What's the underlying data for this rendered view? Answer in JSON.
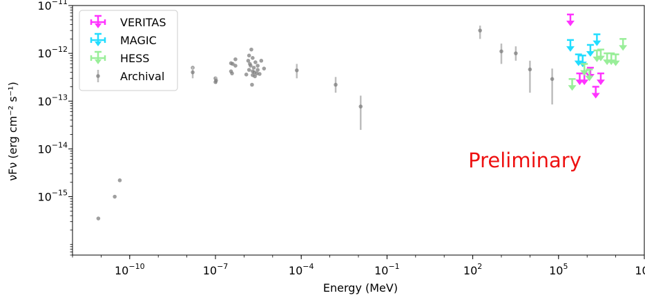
{
  "chart_data": {
    "type": "scatter",
    "xlabel": "Energy (MeV)",
    "ylabel": "νFν (erg cm⁻² s⁻¹)",
    "x_scale": "log",
    "y_scale": "log",
    "xlim": [
      1e-12,
      100000000.0
    ],
    "ylim": [
      6e-17,
      1e-11
    ],
    "x_ticks": [
      {
        "value": 1e-10,
        "base": "10",
        "exp": "−10"
      },
      {
        "value": 1e-07,
        "base": "10",
        "exp": "−7"
      },
      {
        "value": 0.0001,
        "base": "10",
        "exp": "−4"
      },
      {
        "value": 0.1,
        "base": "10",
        "exp": "−1"
      },
      {
        "value": 100,
        "base": "10",
        "exp": "2"
      },
      {
        "value": 100000.0,
        "base": "10",
        "exp": "5"
      },
      {
        "value": 100000000.0,
        "base": "10",
        "exp": "8"
      }
    ],
    "y_ticks": [
      {
        "value": 1e-15,
        "base": "10",
        "exp": "−15"
      },
      {
        "value": 1e-14,
        "base": "10",
        "exp": "−14"
      },
      {
        "value": 1e-13,
        "base": "10",
        "exp": "−13"
      },
      {
        "value": 1e-12,
        "base": "10",
        "exp": "−12"
      },
      {
        "value": 1e-11,
        "base": "10",
        "exp": "−11"
      }
    ],
    "legend": {
      "position": "top-left",
      "entries": [
        "VERITAS",
        "MAGIC",
        "HESS",
        "Archival"
      ]
    },
    "annotation": {
      "text": "Preliminary",
      "color": "#ee1111"
    },
    "series": [
      {
        "name": "Archival",
        "color": "#7f7f7f",
        "points": [
          {
            "x": 8e-12,
            "y": 3.5e-16
          },
          {
            "x": 3e-11,
            "y": 1e-15
          },
          {
            "x": 4.5e-11,
            "y": 2.2e-15
          },
          {
            "x": 1.6e-08,
            "y": 5e-13
          },
          {
            "x": 1.6e-08,
            "y": 4e-13,
            "yerr": [
              3e-13,
              5.2e-13
            ]
          },
          {
            "x": 1e-07,
            "y": 3e-13
          },
          {
            "x": 1.05e-07,
            "y": 2.7e-13,
            "yerr": [
              2.3e-13,
              3.2e-13
            ]
          },
          {
            "x": 1e-07,
            "y": 2.5e-13
          },
          {
            "x": 3.5e-07,
            "y": 6.2e-13
          },
          {
            "x": 4e-07,
            "y": 6e-13
          },
          {
            "x": 3.5e-07,
            "y": 4.2e-13
          },
          {
            "x": 3.8e-07,
            "y": 3.8e-13
          },
          {
            "x": 5e-07,
            "y": 7.5e-13
          },
          {
            "x": 5e-07,
            "y": 5.5e-13
          },
          {
            "x": 1.5e-06,
            "y": 9e-13
          },
          {
            "x": 1.8e-06,
            "y": 1.2e-12
          },
          {
            "x": 2e-06,
            "y": 8e-13
          },
          {
            "x": 1.4e-06,
            "y": 7e-13
          },
          {
            "x": 1.6e-06,
            "y": 6e-13
          },
          {
            "x": 1.7e-06,
            "y": 5.5e-13
          },
          {
            "x": 2.2e-06,
            "y": 5e-13
          },
          {
            "x": 2.5e-06,
            "y": 6.5e-13
          },
          {
            "x": 1.5e-06,
            "y": 4.5e-13
          },
          {
            "x": 2e-06,
            "y": 4.2e-13
          },
          {
            "x": 2.3e-06,
            "y": 4e-13
          },
          {
            "x": 2.8e-06,
            "y": 3.8e-13
          },
          {
            "x": 2e-06,
            "y": 3.5e-13
          },
          {
            "x": 2.4e-06,
            "y": 3.3e-13
          },
          {
            "x": 3e-06,
            "y": 4.5e-13
          },
          {
            "x": 3.5e-06,
            "y": 3.7e-13
          },
          {
            "x": 1.9e-06,
            "y": 2.2e-13
          },
          {
            "x": 3e-06,
            "y": 5.5e-13
          },
          {
            "x": 4e-06,
            "y": 7e-13
          },
          {
            "x": 5e-06,
            "y": 4.8e-13
          },
          {
            "x": 1.2e-06,
            "y": 3.6e-13
          },
          {
            "x": 7e-05,
            "y": 4.4e-13,
            "yerr": [
              3e-13,
              6e-13
            ]
          },
          {
            "x": 0.0016,
            "y": 2.2e-13,
            "yerr": [
              1.5e-13,
              3.2e-13
            ]
          },
          {
            "x": 0.012,
            "y": 7.7e-14,
            "yerr": [
              2.5e-14,
              1.3e-13
            ]
          },
          {
            "x": 180,
            "y": 3e-12,
            "yerr": [
              2e-12,
              3.8e-12
            ]
          },
          {
            "x": 1000,
            "y": 1.1e-12,
            "yerr": [
              6e-13,
              1.6e-12
            ]
          },
          {
            "x": 3200,
            "y": 1e-12,
            "yerr": [
              7e-13,
              1.4e-12
            ]
          },
          {
            "x": 10000,
            "y": 4.6e-13,
            "yerr": [
              1.5e-13,
              7e-13
            ]
          },
          {
            "x": 60000,
            "y": 2.9e-13,
            "yerr": [
              8.5e-14,
              4.8e-13
            ]
          }
        ]
      },
      {
        "name": "VERITAS",
        "color": "#ff33ff",
        "upper_limits": [
          {
            "x": 260000.0,
            "y": 6.5e-12
          },
          {
            "x": 550000.0,
            "y": 3.8e-13
          },
          {
            "x": 800000.0,
            "y": 3.8e-13
          },
          {
            "x": 1300000.0,
            "y": 5e-13
          },
          {
            "x": 2000000.0,
            "y": 2e-13
          },
          {
            "x": 3000000.0,
            "y": 3.8e-13
          }
        ]
      },
      {
        "name": "MAGIC",
        "color": "#22ddff",
        "upper_limits": [
          {
            "x": 260000.0,
            "y": 1.9e-12
          },
          {
            "x": 500000.0,
            "y": 9.5e-13
          },
          {
            "x": 700000.0,
            "y": 9e-13
          },
          {
            "x": 1300000.0,
            "y": 1.5e-12
          },
          {
            "x": 2200000.0,
            "y": 2.5e-12
          }
        ]
      },
      {
        "name": "HESS",
        "color": "#99ee99",
        "upper_limits": [
          {
            "x": 300000.0,
            "y": 2.9e-13
          },
          {
            "x": 800000.0,
            "y": 6e-13
          },
          {
            "x": 1200000.0,
            "y": 4.6e-13
          },
          {
            "x": 2200000.0,
            "y": 1.15e-12
          },
          {
            "x": 3000000.0,
            "y": 1.2e-12
          },
          {
            "x": 5000000.0,
            "y": 1e-12
          },
          {
            "x": 7000000.0,
            "y": 1e-12
          },
          {
            "x": 10000000.0,
            "y": 9.5e-13
          },
          {
            "x": 18000000.0,
            "y": 2e-12
          }
        ]
      }
    ]
  }
}
